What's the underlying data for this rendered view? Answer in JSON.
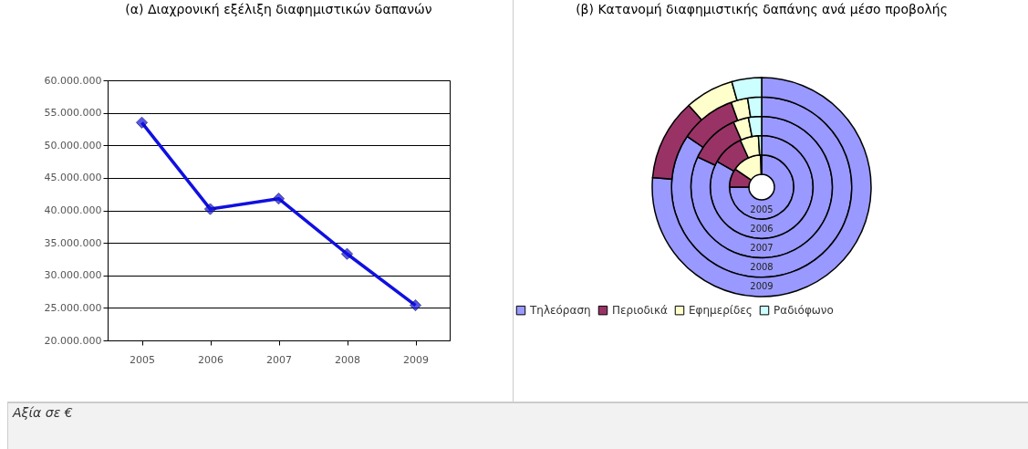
{
  "chart_data": [
    {
      "type": "line",
      "title": "(α) Διαχρονική εξέλιξη διαφημιστικών δαπανών",
      "categories": [
        "2005",
        "2006",
        "2007",
        "2008",
        "2009"
      ],
      "series": [
        {
          "color": "#1010e0",
          "values": [
            53500000,
            40200000,
            41800000,
            33300000,
            25400000
          ]
        }
      ],
      "ylim": [
        20000000,
        60000000
      ],
      "yticks": [
        {
          "value": 20000000,
          "label": "20.000.000"
        },
        {
          "value": 25000000,
          "label": "25.000.000"
        },
        {
          "value": 30000000,
          "label": "30.000.000"
        },
        {
          "value": 35000000,
          "label": "35.000.000"
        },
        {
          "value": 40000000,
          "label": "40.000.000"
        },
        {
          "value": 45000000,
          "label": "45.000.000"
        },
        {
          "value": 50000000,
          "label": "50.000.000"
        },
        {
          "value": 55000000,
          "label": "55.000.000"
        },
        {
          "value": 60000000,
          "label": "60.000.000"
        }
      ],
      "grid": "y",
      "marker": "diamond",
      "annotations": [
        "Αξία σε €"
      ]
    },
    {
      "type": "donut",
      "title": "(β) Κατανομή διαφημιστικής δαπάνης ανά μέσο προβολής",
      "categories": [
        "Τηλεόραση",
        "Περιοδικά",
        "Εφημερίδες",
        "Ραδιόφωνο"
      ],
      "colors": [
        "#9999ff",
        "#993366",
        "#ffffcc",
        "#ccffff"
      ],
      "series": [
        {
          "name": "2005",
          "values": [
            75,
            9.5,
            15,
            0.5
          ]
        },
        {
          "name": "2006",
          "values": [
            83.3,
            9.9,
            5.8,
            1
          ]
        },
        {
          "name": "2007",
          "values": [
            82,
            11.5,
            3.5,
            3
          ]
        },
        {
          "name": "2008",
          "values": [
            84.5,
            10,
            3,
            2.5
          ]
        },
        {
          "name": "2009",
          "values": [
            76.4,
            12,
            7.2,
            4.4
          ]
        }
      ],
      "legend": "bottom"
    }
  ]
}
